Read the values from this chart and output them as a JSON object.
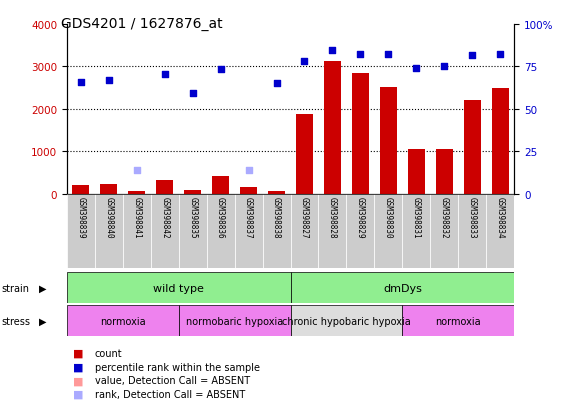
{
  "title": "GDS4201 / 1627876_at",
  "samples": [
    "GSM398839",
    "GSM398840",
    "GSM398841",
    "GSM398842",
    "GSM398835",
    "GSM398836",
    "GSM398837",
    "GSM398838",
    "GSM398827",
    "GSM398828",
    "GSM398829",
    "GSM398830",
    "GSM398831",
    "GSM398832",
    "GSM398833",
    "GSM398834"
  ],
  "count_values": [
    200,
    220,
    60,
    310,
    90,
    420,
    160,
    60,
    1870,
    3120,
    2850,
    2500,
    1060,
    1060,
    2200,
    2480
  ],
  "count_absent": [
    false,
    false,
    false,
    false,
    false,
    false,
    false,
    false,
    false,
    false,
    false,
    false,
    false,
    false,
    false,
    false
  ],
  "rank_values": [
    2640,
    2680,
    550,
    2820,
    2380,
    2940,
    550,
    2610,
    3120,
    3380,
    3300,
    3280,
    2970,
    3000,
    3260,
    3290
  ],
  "rank_absent": [
    false,
    false,
    true,
    false,
    false,
    false,
    true,
    false,
    false,
    false,
    false,
    false,
    false,
    false,
    false,
    false
  ],
  "ylim_left": [
    0,
    4000
  ],
  "ylim_right": [
    0,
    100
  ],
  "yticks_left": [
    0,
    1000,
    2000,
    3000,
    4000
  ],
  "yticks_right": [
    0,
    25,
    50,
    75,
    100
  ],
  "grid_values": [
    1000,
    2000,
    3000
  ],
  "strain_groups": [
    {
      "label": "wild type",
      "start": 0,
      "end": 8,
      "color": "#90ee90"
    },
    {
      "label": "dmDys",
      "start": 8,
      "end": 16,
      "color": "#90ee90"
    }
  ],
  "stress_groups": [
    {
      "label": "normoxia",
      "start": 0,
      "end": 4,
      "color": "#ee82ee"
    },
    {
      "label": "normobaric hypoxia",
      "start": 4,
      "end": 8,
      "color": "#ee82ee"
    },
    {
      "label": "chronic hypobaric hypoxia",
      "start": 8,
      "end": 12,
      "color": "#dddddd"
    },
    {
      "label": "normoxia",
      "start": 12,
      "end": 16,
      "color": "#ee82ee"
    }
  ],
  "bar_color": "#cc0000",
  "bar_absent_color": "#ff9999",
  "dot_color": "#0000cc",
  "dot_absent_color": "#aaaaff",
  "dot_size": 20,
  "bar_width": 0.6,
  "title_fontsize": 10,
  "axis_label_color_left": "#cc0000",
  "axis_label_color_right": "#0000cc",
  "bg_color": "#ffffff",
  "plot_bg_color": "#ffffff",
  "label_gray": "#cccccc",
  "label_gray_dark": "#bbbbbb"
}
